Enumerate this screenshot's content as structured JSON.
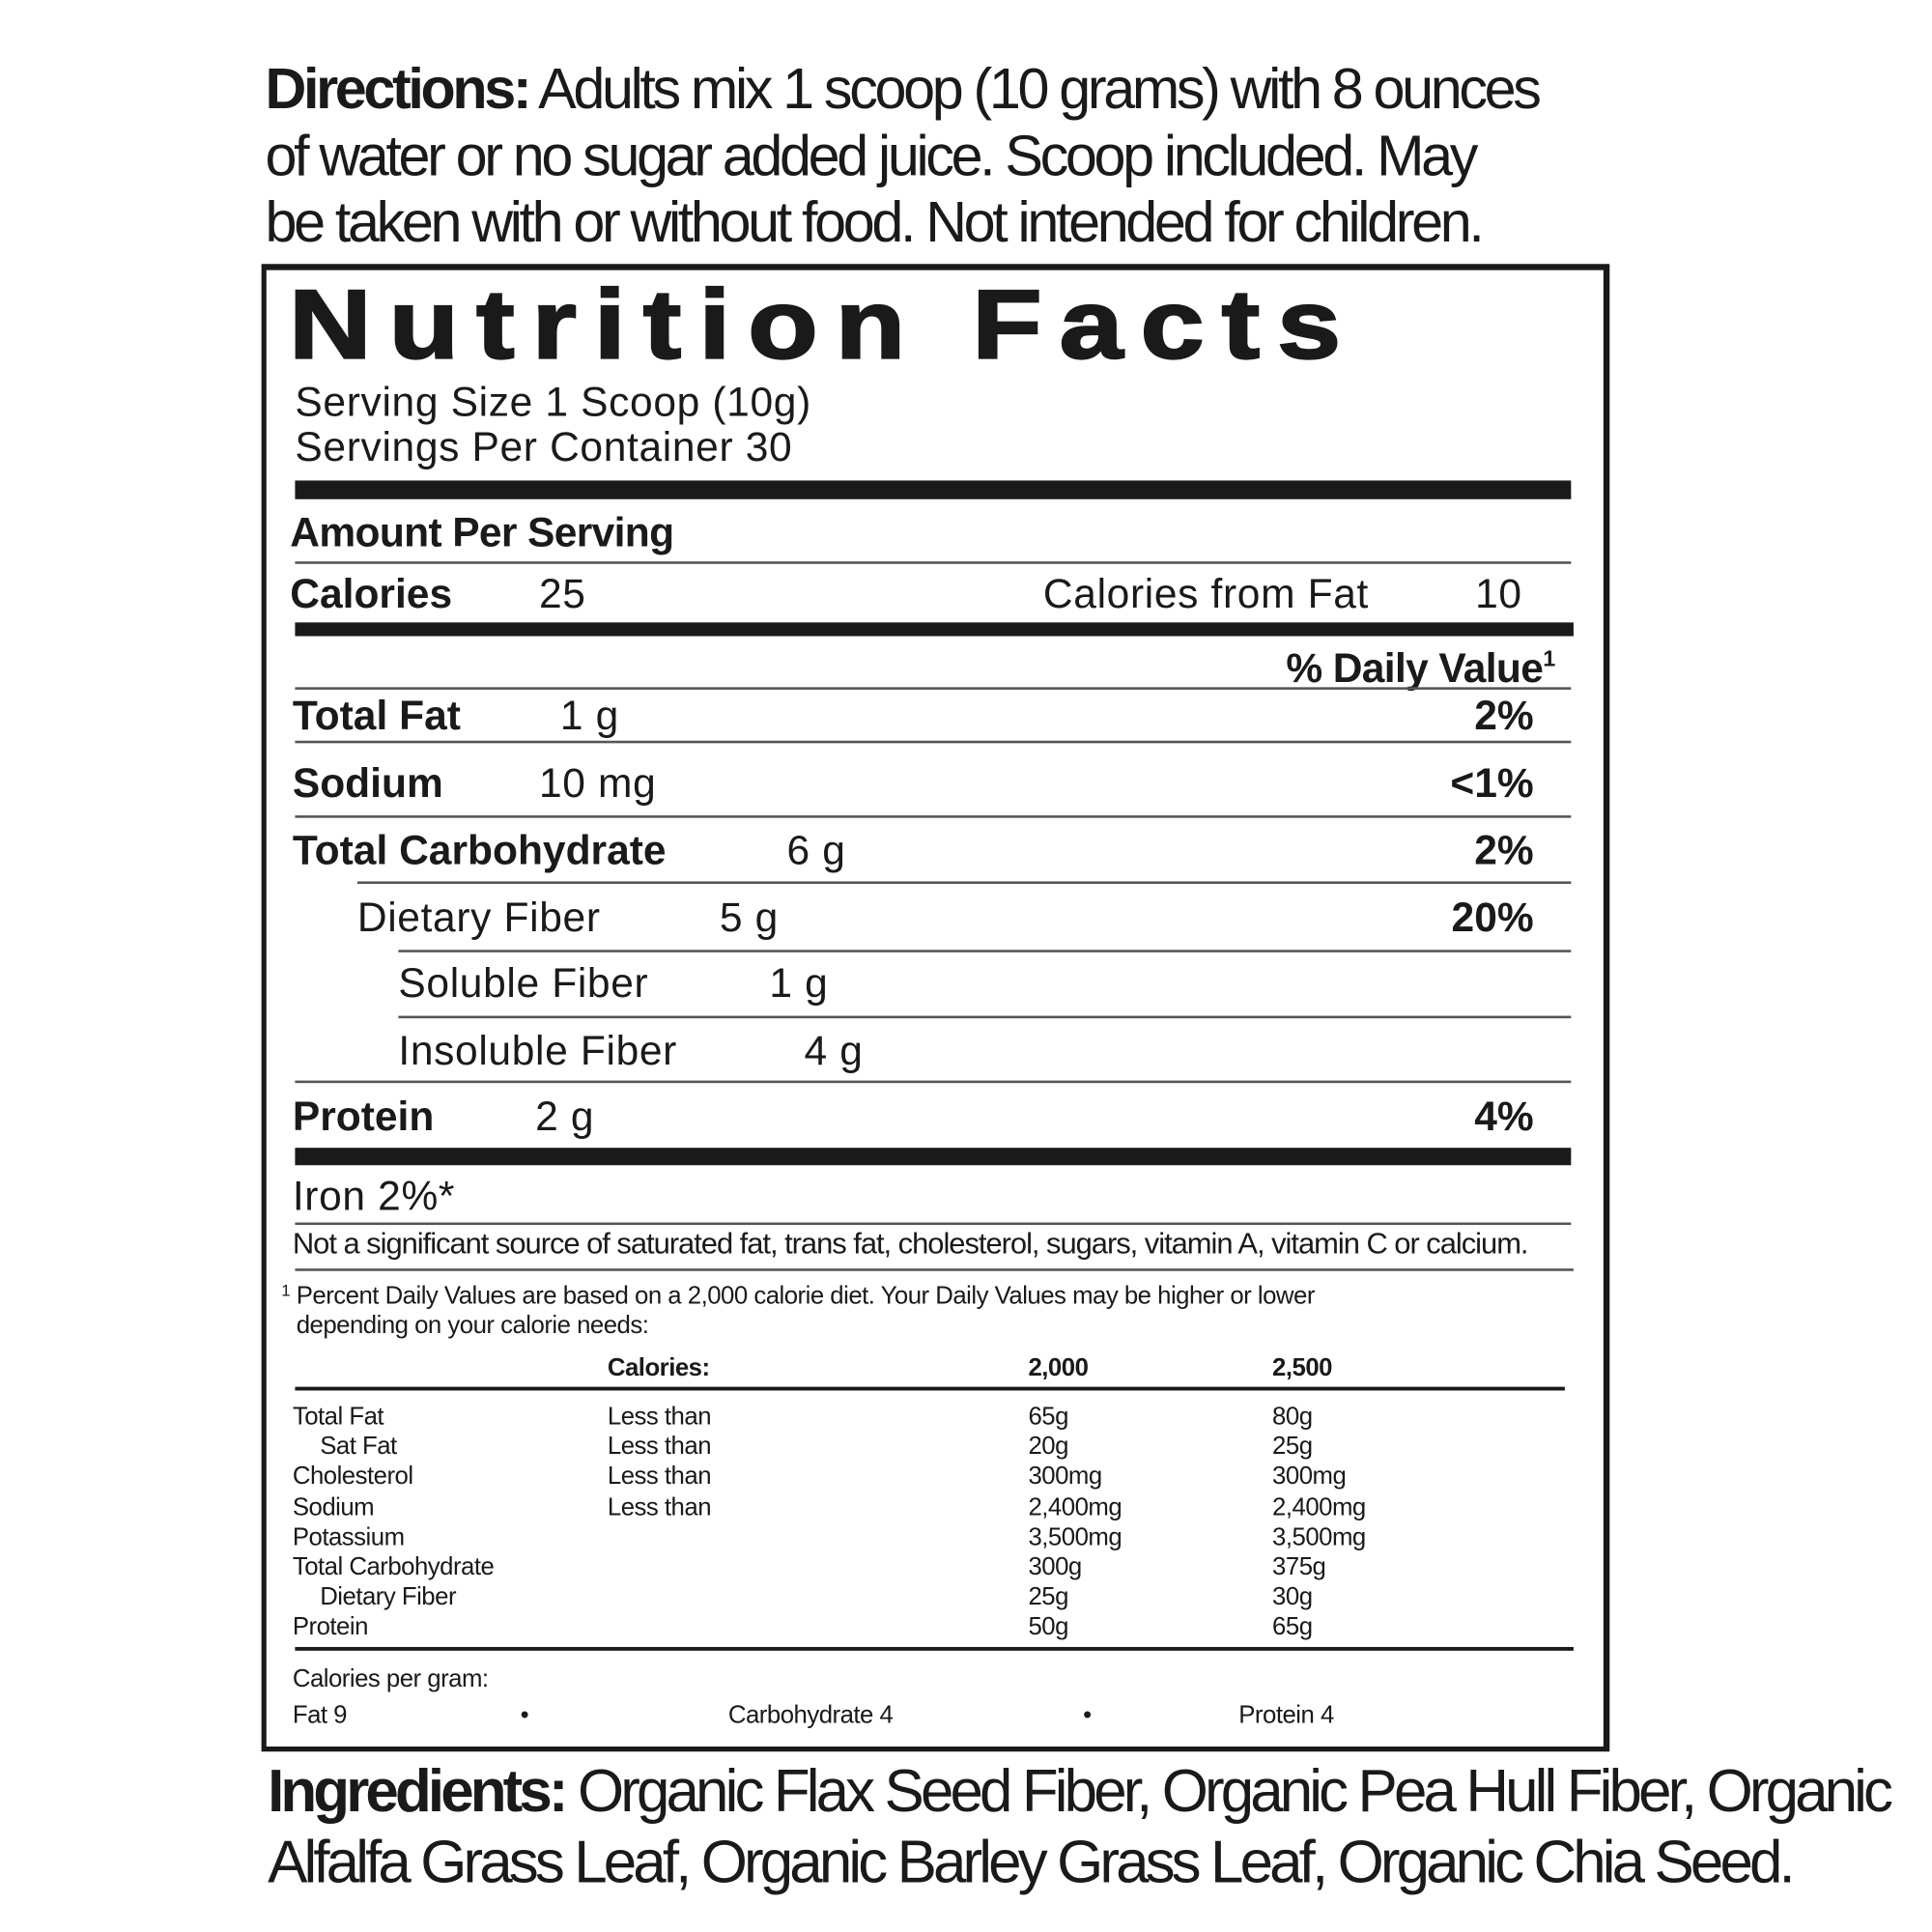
{
  "directions": {
    "label": "Directions:",
    "lines": [
      "Adults mix 1 scoop (10 grams) with 8 ounces",
      "of water or no sugar added juice. Scoop included. May",
      "be taken with or without food. Not intended for children."
    ]
  },
  "nutrition": {
    "title": "Nutrition Facts",
    "serving_size": "Serving Size 1 Scoop (10g)",
    "servings_per_container": "Servings Per Container 30",
    "amount_per_serving": "Amount Per Serving",
    "calories_label": "Calories",
    "calories_value": "25",
    "calories_from_fat_label": "Calories from Fat",
    "calories_from_fat_value": "10",
    "daily_value_header": "% Daily Value",
    "daily_value_sup": "1",
    "rows": [
      {
        "name": "Total Fat",
        "amount": "1 g",
        "dv": "2%"
      },
      {
        "name": "Sodium",
        "amount": "10 mg",
        "dv": "<1%"
      },
      {
        "name": "Total Carbohydrate",
        "amount": "6 g",
        "dv": "2%"
      },
      {
        "name": "Dietary Fiber",
        "amount": "5 g",
        "dv": "20%"
      },
      {
        "name": "Soluble Fiber",
        "amount": "1 g",
        "dv": ""
      },
      {
        "name": "Insoluble Fiber",
        "amount": "4 g",
        "dv": ""
      },
      {
        "name": "Protein",
        "amount": "2 g",
        "dv": "4%"
      }
    ],
    "iron": "Iron 2%*",
    "not_significant": "Not a significant source of saturated fat, trans fat, cholesterol, sugars, vitamin A, vitamin C or calcium.",
    "footnote_mark": "1",
    "footnote_lines": [
      "Percent Daily Values are based on a 2,000 calorie diet. Your Daily Values may be higher or lower",
      "depending on your calorie needs:"
    ],
    "dv_table": {
      "headers": [
        "Calories:",
        "2,000",
        "2,500"
      ],
      "rows": [
        [
          "Total Fat",
          "Less than",
          "65g",
          "80g"
        ],
        [
          "Sat Fat",
          "Less than",
          "20g",
          "25g"
        ],
        [
          "Cholesterol",
          "Less than",
          "300mg",
          "300mg"
        ],
        [
          "Sodium",
          "Less than",
          "2,400mg",
          "2,400mg"
        ],
        [
          "Potassium",
          "",
          "3,500mg",
          "3,500mg"
        ],
        [
          "Total Carbohydrate",
          "",
          "300g",
          "375g"
        ],
        [
          "Dietary Fiber",
          "",
          "25g",
          "30g"
        ],
        [
          "Protein",
          "",
          "50g",
          "65g"
        ]
      ]
    },
    "calories_per_gram": "Calories per gram:",
    "cpg_items": [
      "Fat 9",
      "Carbohydrate 4",
      "Protein 4"
    ],
    "separator": "•"
  },
  "ingredients": {
    "label": "Ingredients:",
    "lines": [
      "Organic Flax Seed Fiber, Organic Pea Hull Fiber, Organic",
      "Alfalfa Grass Leaf, Organic Barley Grass Leaf, Organic Chia Seed."
    ]
  }
}
